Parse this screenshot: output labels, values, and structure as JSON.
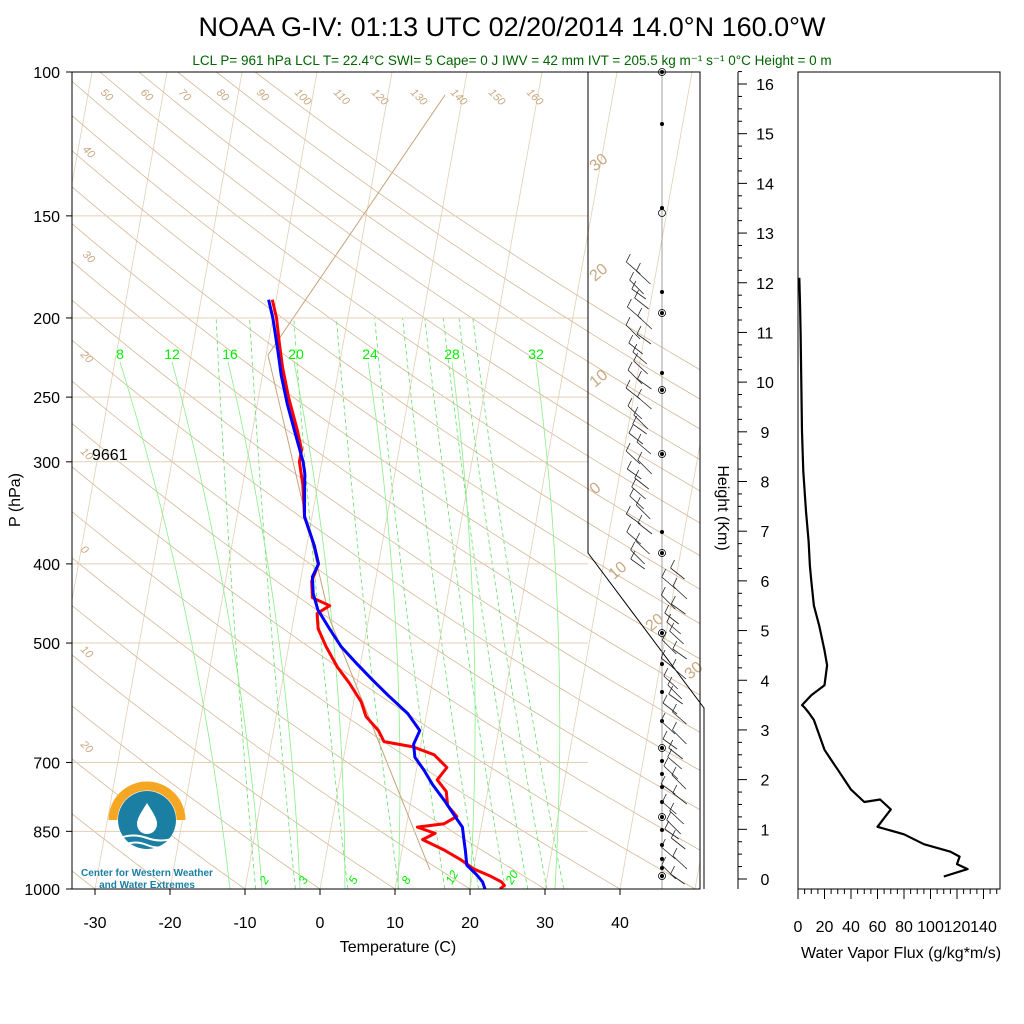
{
  "title": "NOAA G-IV: 01:13 UTC 02/20/2014  14.0°N 160.0°W",
  "subtitle": "LCL P= 961 hPa  LCL T= 22.4°C  SWI= 5  Cape= 0 J  IWV = 42 mm  IVT = 205.5 kg m⁻¹ s⁻¹  0°C Height = 0 m",
  "colors": {
    "temperature": "#ff0000",
    "dewpoint": "#0000ff",
    "dry_adiabat": "#c8a882",
    "mixing_ratio": "#00ee00",
    "subtitle": "#006400",
    "logo_orange": "#f5a623",
    "logo_blue": "#1b7fa3"
  },
  "skewt": {
    "pressure_ticks": [
      "100",
      "150",
      "200",
      "250",
      "300",
      "400",
      "500",
      "700",
      "850",
      "1000"
    ],
    "temperature_ticks": [
      "-30",
      "-20",
      "-10",
      "0",
      "10",
      "20",
      "30",
      "40"
    ],
    "xlabel": "Temperature (C)",
    "ylabel": "P (hPa)",
    "station_label": "9661",
    "dry_adiabat_labels": [
      "50",
      "60",
      "70",
      "80",
      "90",
      "100",
      "110",
      "120",
      "130",
      "140",
      "150",
      "160",
      "40",
      "30",
      "20",
      "10",
      "0",
      "10",
      "20"
    ],
    "side_labels": [
      "30",
      "20",
      "10",
      "0",
      "10",
      "20",
      "30"
    ],
    "mixing_ratio_top_labels": [
      "8",
      "12",
      "16",
      "20",
      "24",
      "28",
      "32"
    ],
    "mixing_ratio_bottom_labels": [
      "2",
      "3",
      "5",
      "8",
      "12",
      "20"
    ]
  },
  "height_axis": {
    "ticks": [
      "0",
      "1",
      "2",
      "3",
      "4",
      "5",
      "6",
      "7",
      "8",
      "9",
      "10",
      "11",
      "12",
      "13",
      "14",
      "15",
      "16"
    ],
    "label": "Height (Km)"
  },
  "flux_axis": {
    "ticks": [
      "0",
      "20",
      "40",
      "60",
      "80",
      "100",
      "120",
      "140"
    ],
    "label": "Water Vapor Flux (g/kg*m/s)"
  },
  "logo": {
    "line1": "Center for Western Weather",
    "line2": "and Water Extremes"
  },
  "chart_data": [
    {
      "type": "line",
      "name_hint": "skew-T log-P sounding",
      "x_unit": "deg C",
      "y_unit": "hPa",
      "yscale": "log",
      "ylim": [
        1000,
        100
      ],
      "xlim": [
        -34,
        50
      ],
      "series": [
        {
          "name": "Temperature",
          "color": "#ff0000",
          "points": [
            [
              24.0,
              1000
            ],
            [
              24.5,
              990
            ],
            [
              24.0,
              980
            ],
            [
              22.5,
              965
            ],
            [
              20.0,
              945
            ],
            [
              18.0,
              920
            ],
            [
              15.5,
              895
            ],
            [
              12.5,
              870
            ],
            [
              14.0,
              855
            ],
            [
              11.5,
              840
            ],
            [
              15.0,
              832
            ],
            [
              16.5,
              815
            ],
            [
              15.0,
              790
            ],
            [
              14.5,
              760
            ],
            [
              13.0,
              735
            ],
            [
              14.0,
              710
            ],
            [
              12.0,
              685
            ],
            [
              9.0,
              670
            ],
            [
              5.0,
              660
            ],
            [
              4.0,
              640
            ],
            [
              2.0,
              615
            ],
            [
              1.0,
              590
            ],
            [
              -1.0,
              560
            ],
            [
              -3.0,
              535
            ],
            [
              -5.0,
              505
            ],
            [
              -6.5,
              480
            ],
            [
              -7.0,
              460
            ],
            [
              -5.5,
              450
            ],
            [
              -8.0,
              440
            ],
            [
              -8.5,
              420
            ],
            [
              -8.0,
              400
            ],
            [
              -9.0,
              380
            ],
            [
              -11.0,
              350
            ],
            [
              -12.0,
              320
            ],
            [
              -13.0,
              300
            ],
            [
              -13.0,
              290
            ],
            [
              -14.0,
              275
            ],
            [
              -16.0,
              250
            ],
            [
              -17.5,
              230
            ],
            [
              -18.5,
              215
            ],
            [
              -19.5,
              200
            ],
            [
              -20.5,
              190
            ]
          ]
        },
        {
          "name": "Dewpoint",
          "color": "#0000ff",
          "points": [
            [
              22.0,
              1000
            ],
            [
              21.5,
              980
            ],
            [
              20.5,
              960
            ],
            [
              19.0,
              935
            ],
            [
              18.5,
              900
            ],
            [
              18.0,
              870
            ],
            [
              17.5,
              840
            ],
            [
              16.0,
              810
            ],
            [
              14.5,
              780
            ],
            [
              12.5,
              745
            ],
            [
              11.0,
              715
            ],
            [
              9.5,
              690
            ],
            [
              9.0,
              665
            ],
            [
              9.5,
              640
            ],
            [
              7.5,
              610
            ],
            [
              4.5,
              580
            ],
            [
              2.0,
              555
            ],
            [
              -0.5,
              530
            ],
            [
              -3.0,
              505
            ],
            [
              -5.0,
              480
            ],
            [
              -7.0,
              455
            ],
            [
              -8.0,
              435
            ],
            [
              -8.5,
              415
            ],
            [
              -8.0,
              400
            ],
            [
              -9.0,
              380
            ],
            [
              -11.0,
              350
            ],
            [
              -11.5,
              330
            ],
            [
              -12.0,
              310
            ],
            [
              -12.5,
              300
            ],
            [
              -14.0,
              280
            ],
            [
              -16.0,
              255
            ],
            [
              -17.5,
              235
            ],
            [
              -18.5,
              220
            ],
            [
              -20.0,
              200
            ],
            [
              -21.0,
              190
            ]
          ]
        }
      ]
    },
    {
      "type": "line",
      "name_hint": "water vapor flux profile",
      "x_unit": "g/kg*m/s",
      "y_unit": "km",
      "xlim": [
        0,
        140
      ],
      "ylim": [
        0,
        16.5
      ],
      "series": [
        {
          "color": "#000000",
          "points": [
            [
              110,
              0.05
            ],
            [
              128,
              0.2
            ],
            [
              120,
              0.3
            ],
            [
              122,
              0.45
            ],
            [
              115,
              0.55
            ],
            [
              95,
              0.7
            ],
            [
              80,
              0.9
            ],
            [
              60,
              1.05
            ],
            [
              70,
              1.4
            ],
            [
              62,
              1.6
            ],
            [
              50,
              1.55
            ],
            [
              40,
              1.8
            ],
            [
              35,
              2.0
            ],
            [
              30,
              2.2
            ],
            [
              25,
              2.4
            ],
            [
              20,
              2.6
            ],
            [
              16,
              2.9
            ],
            [
              12,
              3.2
            ],
            [
              8,
              3.35
            ],
            [
              5,
              3.45
            ],
            [
              3,
              3.5
            ],
            [
              10,
              3.7
            ],
            [
              20,
              3.9
            ],
            [
              22,
              4.3
            ],
            [
              20,
              4.6
            ],
            [
              16,
              5.1
            ],
            [
              12,
              5.5
            ],
            [
              10,
              6.0
            ],
            [
              9,
              6.3
            ],
            [
              8,
              6.8
            ],
            [
              6,
              7.4
            ],
            [
              4,
              8.2
            ],
            [
              3,
              9.0
            ],
            [
              2.5,
              10.0
            ],
            [
              2,
              11.0
            ],
            [
              1.5,
              11.6
            ],
            [
              1,
              12.1
            ]
          ]
        }
      ]
    }
  ]
}
